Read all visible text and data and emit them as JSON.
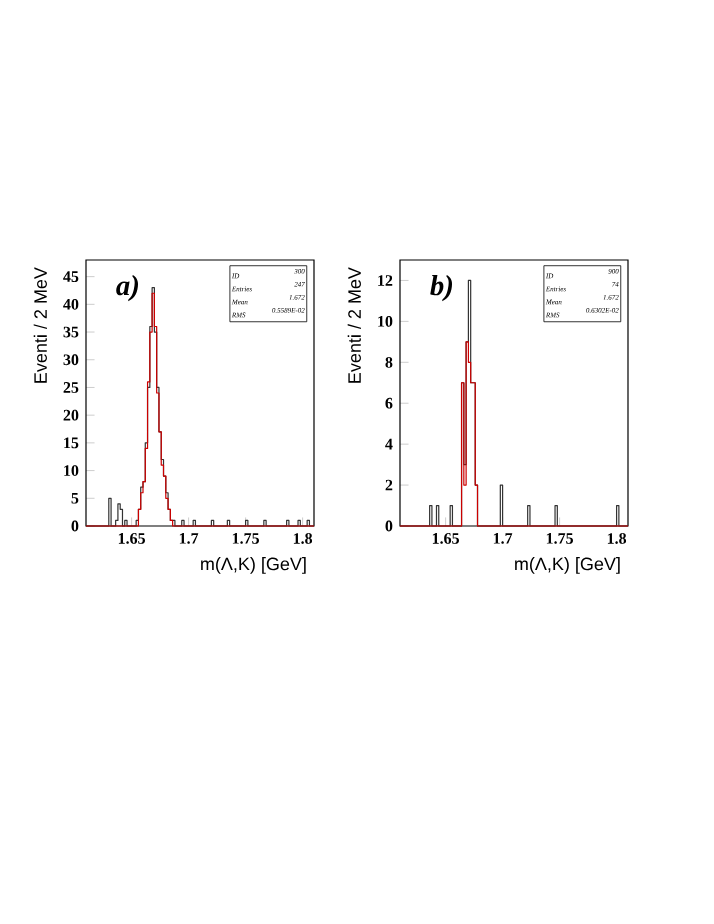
{
  "chart_data": [
    {
      "type": "histogram",
      "title": "a)",
      "xlabel": "m(Λ,K)   [GeV]",
      "ylabel": "Eventi / 2 MeV",
      "bins": [
        1.61,
        1.612,
        1.614,
        1.616,
        1.618,
        1.62,
        1.622,
        1.624,
        1.626,
        1.628,
        1.63,
        1.632,
        1.634,
        1.636,
        1.638,
        1.64,
        1.642,
        1.644,
        1.646,
        1.648,
        1.65,
        1.652,
        1.654,
        1.656,
        1.658,
        1.66,
        1.662,
        1.664,
        1.666,
        1.668,
        1.67,
        1.672,
        1.674,
        1.676,
        1.678,
        1.68,
        1.682,
        1.684,
        1.686,
        1.688,
        1.69,
        1.692,
        1.694,
        1.696,
        1.698,
        1.7,
        1.702,
        1.704,
        1.706,
        1.708,
        1.71,
        1.712,
        1.714,
        1.716,
        1.718,
        1.72,
        1.722,
        1.724,
        1.726,
        1.728,
        1.73,
        1.732,
        1.734,
        1.736,
        1.738,
        1.74,
        1.742,
        1.744,
        1.746,
        1.748,
        1.75,
        1.752,
        1.754,
        1.756,
        1.758,
        1.76,
        1.762,
        1.764,
        1.766,
        1.768,
        1.77,
        1.772,
        1.774,
        1.776,
        1.778,
        1.78,
        1.782,
        1.784,
        1.786,
        1.788,
        1.79,
        1.792,
        1.794,
        1.796,
        1.798,
        1.8,
        1.802,
        1.804,
        1.806,
        1.808,
        1.81
      ],
      "series": [
        {
          "color": "#333333",
          "values": [
            0,
            0,
            0,
            0,
            0,
            0,
            0,
            0,
            0,
            0,
            5,
            0,
            0,
            1,
            4,
            3,
            0,
            1,
            0,
            0,
            0,
            0,
            1,
            3,
            7,
            8,
            15,
            25,
            36,
            43,
            35,
            25,
            17,
            12,
            9,
            6,
            3,
            1,
            1,
            0,
            0,
            0,
            1,
            0,
            0,
            0,
            0,
            1,
            0,
            0,
            0,
            0,
            0,
            0,
            0,
            1,
            0,
            0,
            0,
            0,
            0,
            0,
            1,
            0,
            0,
            0,
            0,
            0,
            0,
            0,
            1,
            0,
            0,
            0,
            0,
            0,
            0,
            0,
            1,
            0,
            0,
            0,
            0,
            0,
            0,
            0,
            0,
            0,
            1,
            0,
            0,
            0,
            0,
            1,
            0,
            0,
            0,
            1,
            0,
            0
          ]
        },
        {
          "color": "#cc0000",
          "values": [
            0,
            0,
            0,
            0,
            0,
            0,
            0,
            0,
            0,
            0,
            0,
            0,
            0,
            0,
            0,
            0,
            0,
            0,
            0,
            0,
            0,
            0,
            0,
            3,
            6,
            8,
            14,
            26,
            35,
            42,
            36,
            24,
            17,
            11,
            9,
            5,
            3,
            1,
            0,
            0,
            0,
            0,
            0,
            0,
            0,
            0,
            0,
            0,
            0,
            0,
            0,
            0,
            0,
            0,
            0,
            0,
            0,
            0,
            0,
            0,
            0,
            0,
            0,
            0,
            0,
            0,
            0,
            0,
            0,
            0,
            0,
            0,
            0,
            0,
            0,
            0,
            0,
            0,
            0,
            0,
            0,
            0,
            0,
            0,
            0,
            0,
            0,
            0,
            0,
            0,
            0,
            0,
            0,
            0,
            0,
            0,
            0,
            0,
            0,
            0
          ]
        }
      ],
      "xlim": [
        1.61,
        1.81
      ],
      "xticks": [
        1.65,
        1.7,
        1.75,
        1.8
      ],
      "ylim": [
        0,
        48
      ],
      "yticks": [
        0,
        5,
        10,
        15,
        20,
        25,
        30,
        35,
        40,
        45
      ],
      "annotations": [
        "ID",
        "300",
        "Entries",
        "247",
        "Mean",
        "1.672",
        "RMS",
        "0.5589E-02"
      ]
    },
    {
      "type": "histogram",
      "title": "b)",
      "xlabel": "m(Λ,K)   [GeV]",
      "ylabel": "Eventi / 2 MeV",
      "bins": [
        1.61,
        1.612,
        1.614,
        1.616,
        1.618,
        1.62,
        1.622,
        1.624,
        1.626,
        1.628,
        1.63,
        1.632,
        1.634,
        1.636,
        1.638,
        1.64,
        1.642,
        1.644,
        1.646,
        1.648,
        1.65,
        1.652,
        1.654,
        1.656,
        1.658,
        1.66,
        1.662,
        1.664,
        1.666,
        1.668,
        1.67,
        1.672,
        1.674,
        1.676,
        1.678,
        1.68,
        1.682,
        1.684,
        1.686,
        1.688,
        1.69,
        1.692,
        1.694,
        1.696,
        1.698,
        1.7,
        1.702,
        1.704,
        1.706,
        1.708,
        1.71,
        1.712,
        1.714,
        1.716,
        1.718,
        1.72,
        1.722,
        1.724,
        1.726,
        1.728,
        1.73,
        1.732,
        1.734,
        1.736,
        1.738,
        1.74,
        1.742,
        1.744,
        1.746,
        1.748,
        1.75,
        1.752,
        1.754,
        1.756,
        1.758,
        1.76,
        1.762,
        1.764,
        1.766,
        1.768,
        1.77,
        1.772,
        1.774,
        1.776,
        1.778,
        1.78,
        1.782,
        1.784,
        1.786,
        1.788,
        1.79,
        1.792,
        1.794,
        1.796,
        1.798,
        1.8,
        1.802,
        1.804,
        1.806,
        1.808,
        1.81
      ],
      "series": [
        {
          "color": "#333333",
          "values": [
            0,
            0,
            0,
            0,
            0,
            0,
            0,
            0,
            0,
            0,
            0,
            0,
            0,
            1,
            0,
            0,
            1,
            0,
            0,
            0,
            0,
            0,
            1,
            0,
            0,
            0,
            0,
            7,
            3,
            9,
            12,
            7,
            7,
            2,
            0,
            0,
            0,
            0,
            0,
            0,
            0,
            0,
            0,
            0,
            2,
            0,
            0,
            0,
            0,
            0,
            0,
            0,
            0,
            0,
            0,
            0,
            1,
            0,
            0,
            0,
            0,
            0,
            0,
            0,
            0,
            0,
            0,
            0,
            1,
            0,
            0,
            0,
            0,
            0,
            0,
            0,
            0,
            0,
            0,
            0,
            0,
            0,
            0,
            0,
            0,
            0,
            0,
            0,
            0,
            0,
            0,
            0,
            0,
            0,
            0,
            1,
            0,
            0,
            0,
            0
          ]
        },
        {
          "color": "#cc0000",
          "values": [
            0,
            0,
            0,
            0,
            0,
            0,
            0,
            0,
            0,
            0,
            0,
            0,
            0,
            0,
            0,
            0,
            0,
            0,
            0,
            0,
            0,
            0,
            0,
            0,
            0,
            0,
            0,
            7,
            2,
            9,
            8,
            7,
            7,
            2,
            0,
            0,
            0,
            0,
            0,
            0,
            0,
            0,
            0,
            0,
            0,
            0,
            0,
            0,
            0,
            0,
            0,
            0,
            0,
            0,
            0,
            0,
            0,
            0,
            0,
            0,
            0,
            0,
            0,
            0,
            0,
            0,
            0,
            0,
            0,
            0,
            0,
            0,
            0,
            0,
            0,
            0,
            0,
            0,
            0,
            0,
            0,
            0,
            0,
            0,
            0,
            0,
            0,
            0,
            0,
            0,
            0,
            0,
            0,
            0,
            0,
            0,
            0,
            0,
            0,
            0
          ]
        }
      ],
      "xlim": [
        1.61,
        1.81
      ],
      "xticks": [
        1.65,
        1.7,
        1.75,
        1.8
      ],
      "ylim": [
        0,
        13
      ],
      "yticks": [
        0,
        2,
        4,
        6,
        8,
        10,
        12
      ],
      "annotations": [
        "ID",
        "900",
        "Entries",
        "74",
        "Mean",
        "1.672",
        "RMS",
        "0.6302E-02"
      ]
    }
  ]
}
